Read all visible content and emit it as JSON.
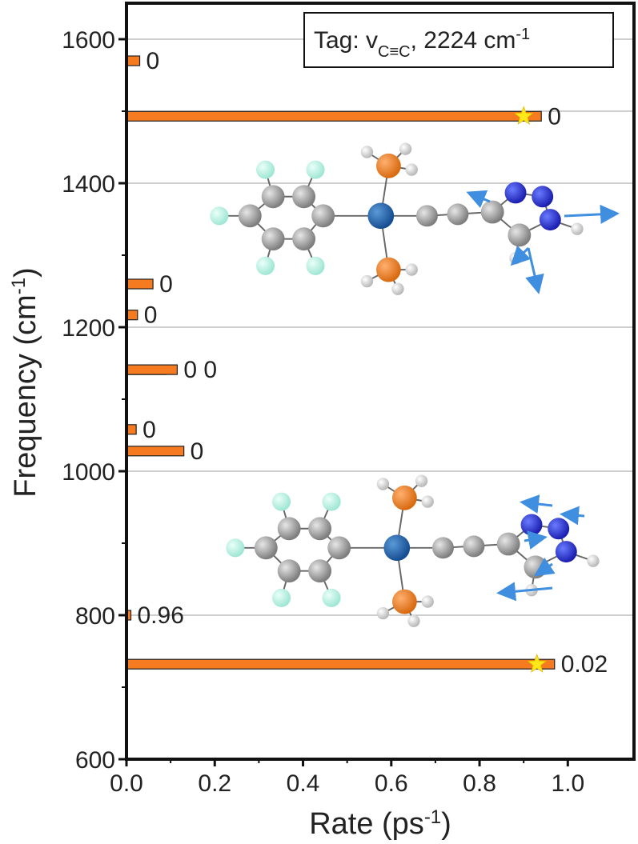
{
  "chart_data": {
    "type": "bar",
    "orientation": "horizontal",
    "xlabel": "Rate (ps",
    "xlabel_sup": "-1",
    "xlabel_end": ")",
    "ylabel": "Frequency (cm",
    "ylabel_sup": "-1",
    "ylabel_end": ")",
    "xlim": [
      0,
      1.15
    ],
    "ylim": [
      600,
      1650
    ],
    "xticks": [
      "0.0",
      "0.2",
      "0.4",
      "0.6",
      "0.8",
      "1.0"
    ],
    "xtick_values": [
      0,
      0.2,
      0.4,
      0.6,
      0.8,
      1.0
    ],
    "yticks": [
      "600",
      "800",
      "1000",
      "1200",
      "1400",
      "1600"
    ],
    "ytick_values": [
      600,
      800,
      1000,
      1200,
      1400,
      1600
    ],
    "grid_y_values": [
      1600,
      1500,
      1400,
      1200,
      1000,
      800
    ],
    "legend": {
      "text": "Tag: v",
      "sub": "C≡C",
      "text2": ", 2224 cm",
      "sup": "-1",
      "placement": "top-right"
    },
    "bar_color": "#f57a20",
    "star_color": "#ffe81a",
    "bars": [
      {
        "frequency": 1570,
        "rate": 0.03,
        "label": "0",
        "star": false
      },
      {
        "frequency": 1493,
        "rate": 0.94,
        "label": "0",
        "star": true
      },
      {
        "frequency": 1260,
        "rate": 0.06,
        "label": "0",
        "star": false
      },
      {
        "frequency": 1217,
        "rate": 0.025,
        "label": "0",
        "star": false
      },
      {
        "frequency": 1141,
        "rate": 0.09,
        "label": "",
        "star": false
      },
      {
        "frequency": 1141,
        "rate": 0.115,
        "label": "0 0",
        "star": false
      },
      {
        "frequency": 1058,
        "rate": 0.022,
        "label": "0",
        "star": false
      },
      {
        "frequency": 1028,
        "rate": 0.13,
        "label": "0",
        "star": false
      },
      {
        "frequency": 800,
        "rate": 0.01,
        "label": "0.96",
        "star": false
      },
      {
        "frequency": 732,
        "rate": 0.97,
        "label": "0.02",
        "star": true
      }
    ]
  }
}
